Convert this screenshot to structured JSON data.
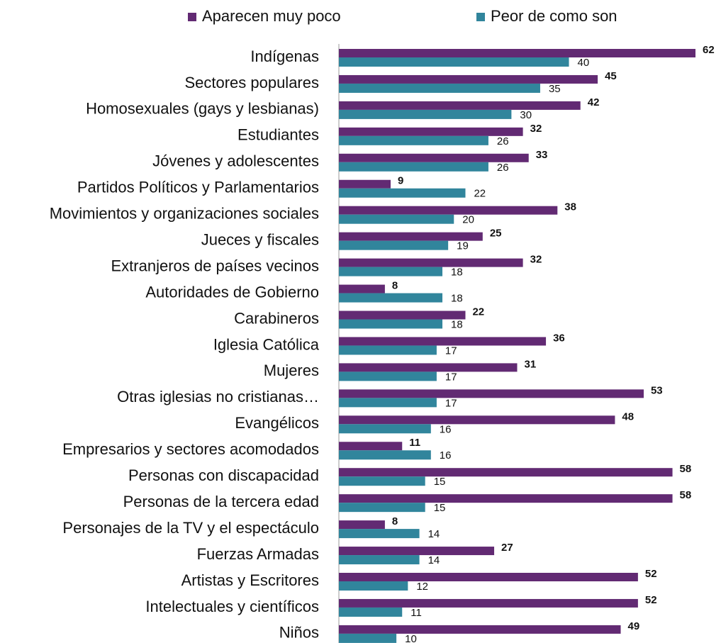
{
  "chart_data": {
    "type": "hbar",
    "categories": [
      "Indígenas",
      "Sectores populares",
      "Homosexuales (gays y lesbianas)",
      "Estudiantes",
      "Jóvenes y adolescentes",
      "Partidos Políticos y Parlamentarios",
      "Movimientos y organizaciones sociales",
      "Jueces y fiscales",
      "Extranjeros de países vecinos",
      "Autoridades de Gobierno",
      "Carabineros",
      "Iglesia Católica",
      "Mujeres",
      "Otras iglesias no cristianas…",
      "Evangélicos",
      "Empresarios y sectores acomodados",
      "Personas con discapacidad",
      "Personas de la tercera edad",
      "Personajes de la TV y el espectáculo",
      "Fuerzas Armadas",
      "Artistas y Escritores",
      "Intelectuales y científicos",
      "Niños"
    ],
    "series": [
      {
        "name": "Aparecen muy poco",
        "color": "#622a73",
        "values": [
          62,
          45,
          42,
          32,
          33,
          9,
          38,
          25,
          32,
          8,
          22,
          36,
          31,
          53,
          48,
          11,
          58,
          58,
          8,
          27,
          52,
          52,
          49
        ]
      },
      {
        "name": "Peor de como son",
        "color": "#31859c",
        "values": [
          40,
          35,
          30,
          26,
          26,
          22,
          20,
          19,
          18,
          18,
          18,
          17,
          17,
          17,
          16,
          16,
          15,
          15,
          14,
          14,
          12,
          11,
          10
        ]
      }
    ],
    "xlim": [
      0,
      62
    ],
    "legend": "top"
  }
}
